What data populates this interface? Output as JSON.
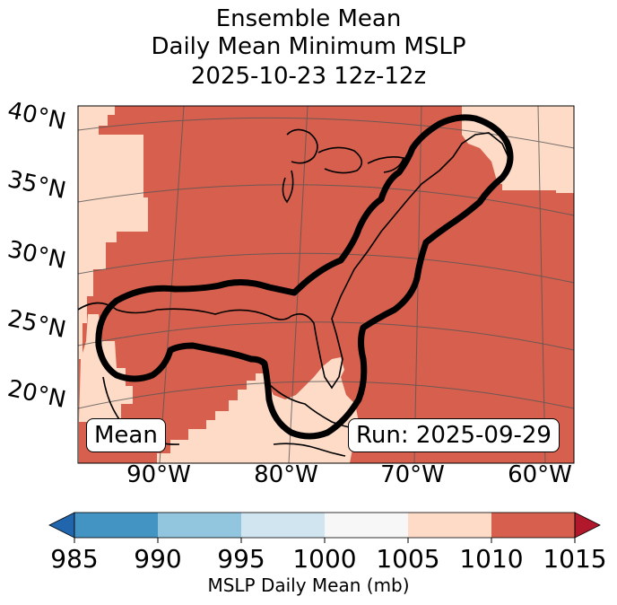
{
  "title": {
    "line1": "Ensemble Mean",
    "line2": "Daily Mean Minimum MSLP",
    "line3": "2025-10-23 12z-12z"
  },
  "map": {
    "lat_labels": [
      "40°N",
      "35°N",
      "30°N",
      "25°N",
      "20°N"
    ],
    "lon_labels": [
      "90°W",
      "80°W",
      "70°W",
      "60°W"
    ],
    "mean_label": "Mean",
    "run_label": "Run: 2025-09-29",
    "contour_description": "Thick black contour (probability/mean threshold) over Gulf of Mexico and US East Coast"
  },
  "colorbar": {
    "ticks": [
      "985",
      "990",
      "995",
      "1000",
      "1005",
      "1010",
      "1015"
    ],
    "label": "MSLP Daily Mean (mb)",
    "colors": [
      "#2166ac",
      "#4393c3",
      "#92c5de",
      "#d1e5f0",
      "#f7f7f7",
      "#fddbc7",
      "#d6604d",
      "#b2182b"
    ]
  }
}
